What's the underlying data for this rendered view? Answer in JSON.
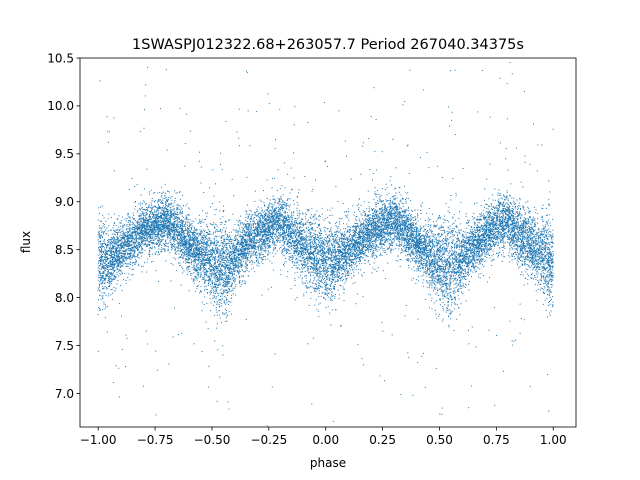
{
  "chart_data": {
    "type": "scatter",
    "title": "1SWASPJ012322.68+263057.7 Period 267040.34375s",
    "xlabel": "phase",
    "ylabel": "flux",
    "xlim": [
      -1.08,
      1.1
    ],
    "ylim": [
      6.65,
      10.5
    ],
    "x_ticks": [
      -1.0,
      -0.75,
      -0.5,
      -0.25,
      0.0,
      0.25,
      0.5,
      0.75,
      1.0
    ],
    "x_tick_labels": [
      "−1.00",
      "−0.75",
      "−0.50",
      "−0.25",
      "0.00",
      "0.25",
      "0.50",
      "0.75",
      "1.00"
    ],
    "y_ticks": [
      7.0,
      7.5,
      8.0,
      8.5,
      9.0,
      9.5,
      10.0,
      10.5
    ],
    "y_tick_labels": [
      "7.0",
      "7.5",
      "8.0",
      "8.5",
      "9.0",
      "9.5",
      "10.0",
      "10.5"
    ],
    "marker_color": "#1f77b4",
    "grid": false,
    "series": [
      {
        "phase": [
          -1.0,
          -0.95,
          -0.9,
          -0.85,
          -0.8,
          -0.75,
          -0.7,
          -0.65,
          -0.6,
          -0.55,
          -0.5,
          -0.45,
          -0.4,
          -0.35,
          -0.3,
          -0.25,
          -0.2,
          -0.15,
          -0.1,
          -0.05,
          0.0,
          0.05,
          0.1,
          0.15,
          0.2,
          0.25,
          0.3,
          0.35,
          0.4,
          0.45,
          0.5,
          0.55,
          0.6,
          0.65,
          0.7,
          0.75,
          0.8,
          0.85,
          0.9,
          0.95,
          1.0
        ],
        "flux_center": [
          8.35,
          8.4,
          8.5,
          8.6,
          8.7,
          8.75,
          8.8,
          8.7,
          8.55,
          8.45,
          8.35,
          8.3,
          8.4,
          8.55,
          8.65,
          8.75,
          8.8,
          8.65,
          8.55,
          8.45,
          8.35,
          8.4,
          8.5,
          8.6,
          8.7,
          8.75,
          8.8,
          8.7,
          8.55,
          8.45,
          8.35,
          8.3,
          8.4,
          8.55,
          8.65,
          8.75,
          8.8,
          8.65,
          8.55,
          8.45,
          8.35
        ],
        "flux_spread": [
          0.4,
          0.3,
          0.25,
          0.25,
          0.25,
          0.25,
          0.25,
          0.25,
          0.25,
          0.3,
          0.4,
          0.45,
          0.3,
          0.25,
          0.25,
          0.25,
          0.25,
          0.3,
          0.3,
          0.35,
          0.45,
          0.3,
          0.25,
          0.25,
          0.25,
          0.25,
          0.25,
          0.25,
          0.25,
          0.3,
          0.4,
          0.45,
          0.3,
          0.25,
          0.25,
          0.25,
          0.25,
          0.3,
          0.3,
          0.35,
          0.45
        ]
      }
    ]
  }
}
